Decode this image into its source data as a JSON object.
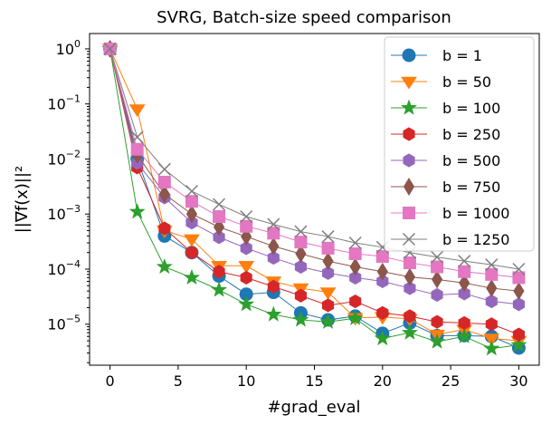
{
  "chart_data": {
    "type": "line",
    "title": "SVRG, Batch-size speed comparison",
    "xlabel": "#grad_eval",
    "ylabel": "||∇f(x)||²",
    "yscale": "log",
    "xlim": [
      -1.5,
      31.5
    ],
    "ylim": [
      1.8e-06,
      1.9
    ],
    "xticks": [
      0,
      5,
      10,
      15,
      20,
      25,
      30
    ],
    "yticks": [
      {
        "value": 1e-05,
        "base": "10",
        "exp": "−5"
      },
      {
        "value": 0.0001,
        "base": "10",
        "exp": "−4"
      },
      {
        "value": 0.001,
        "base": "10",
        "exp": "−3"
      },
      {
        "value": 0.01,
        "base": "10",
        "exp": "−2"
      },
      {
        "value": 0.1,
        "base": "10",
        "exp": "−1"
      },
      {
        "value": 1,
        "base": "10",
        "exp": "0"
      }
    ],
    "legend_position": "upper-right",
    "x": [
      0,
      2,
      4,
      6,
      8,
      10,
      12,
      14,
      16,
      18,
      20,
      22,
      24,
      26,
      28,
      30
    ],
    "series": [
      {
        "name": "b = 1",
        "color": "#1f77b4",
        "marker": "circle",
        "values": [
          1.0,
          0.01,
          0.0004,
          0.0002,
          7.5e-05,
          3.5e-05,
          3.8e-05,
          1.6e-05,
          1.2e-05,
          1.4e-05,
          6.8e-06,
          1.05e-05,
          6.2e-06,
          6.2e-06,
          6e-06,
          3.7e-06
        ]
      },
      {
        "name": "b = 50",
        "color": "#ff7f0e",
        "marker": "triangle-down",
        "values": [
          1.0,
          0.08,
          0.0005,
          0.00035,
          0.000115,
          0.000115,
          6e-05,
          4.5e-05,
          3.8e-05,
          1.3e-05,
          1.35e-05,
          1.25e-05,
          6.5e-06,
          8e-06,
          5.5e-06,
          5e-06
        ]
      },
      {
        "name": "b = 100",
        "color": "#2ca02c",
        "marker": "star",
        "values": [
          1.0,
          0.0011,
          0.00011,
          7e-05,
          4.2e-05,
          2.3e-05,
          1.5e-05,
          1.2e-05,
          1.1e-05,
          1.28e-05,
          5.5e-06,
          7e-06,
          4.8e-06,
          6e-06,
          3.6e-06,
          4.2e-06
        ]
      },
      {
        "name": "b = 250",
        "color": "#d62728",
        "marker": "hexagon",
        "values": [
          1.0,
          0.007,
          0.00055,
          0.0002,
          9e-05,
          7e-05,
          4.8e-05,
          3.3e-05,
          2.2e-05,
          2.6e-05,
          1.6e-05,
          1.4e-05,
          1.1e-05,
          1.05e-05,
          1e-05,
          6.5e-06
        ]
      },
      {
        "name": "b = 500",
        "color": "#9467bd",
        "marker": "hexagon",
        "values": [
          1.0,
          0.0085,
          0.002,
          0.0007,
          0.00038,
          0.00024,
          0.00016,
          0.00011,
          8.5e-05,
          7e-05,
          6e-05,
          4.5e-05,
          3.4e-05,
          3.6e-05,
          2.6e-05,
          2.3e-05
        ]
      },
      {
        "name": "b = 750",
        "color": "#8c564b",
        "marker": "diamond",
        "values": [
          1.0,
          0.012,
          0.0023,
          0.001,
          0.00058,
          0.00039,
          0.00026,
          0.00019,
          0.00014,
          0.00011,
          9e-05,
          7.2e-05,
          6.5e-05,
          5.6e-05,
          4.5e-05,
          4e-05
        ]
      },
      {
        "name": "b = 1000",
        "color": "#e377c2",
        "marker": "square",
        "values": [
          1.0,
          0.015,
          0.0038,
          0.0017,
          0.0009,
          0.0006,
          0.00045,
          0.00031,
          0.00024,
          0.00019,
          0.00017,
          0.00013,
          0.00011,
          9e-05,
          8e-05,
          7e-05
        ]
      },
      {
        "name": "b = 1250",
        "color": "#7f7f7f",
        "marker": "x",
        "values": [
          1.0,
          0.025,
          0.0065,
          0.0026,
          0.0015,
          0.0009,
          0.00065,
          0.00048,
          0.00039,
          0.0003,
          0.00025,
          0.0002,
          0.000165,
          0.00014,
          0.00012,
          0.0001
        ]
      }
    ]
  }
}
